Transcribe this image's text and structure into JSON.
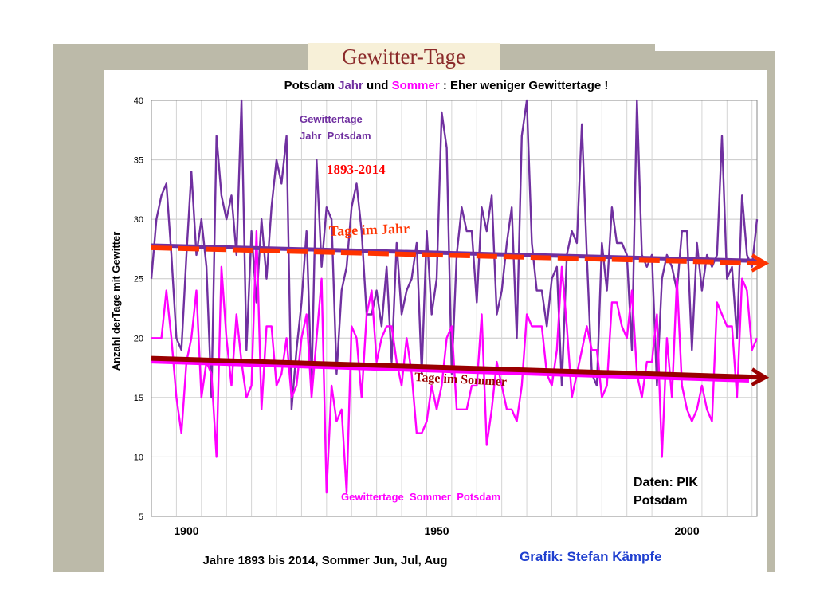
{
  "slide_title": "Gewitter-Tage",
  "chart_data": {
    "type": "line",
    "title_parts": [
      {
        "text": "Potsdam ",
        "color": "#000000"
      },
      {
        "text": "Jahr",
        "color": "#7030a0"
      },
      {
        "text": " und ",
        "color": "#000000"
      },
      {
        "text": "Sommer",
        "color": "#ff00ff"
      },
      {
        "text": " : Eher weniger Gewittertage !",
        "color": "#000000"
      }
    ],
    "ylabel": "Anzahl derTage mit Gewitter",
    "xlabel": "Jahre 1893 bis 2014, Sommer Jun, Jul, Aug",
    "xlim": [
      1893,
      2014
    ],
    "ylim": [
      5,
      40
    ],
    "yticks": [
      5,
      10,
      15,
      20,
      25,
      30,
      35,
      40
    ],
    "xticks": [
      1900,
      1950,
      2000
    ],
    "grid": true,
    "x": [
      1893,
      1894,
      1895,
      1896,
      1897,
      1898,
      1899,
      1900,
      1901,
      1902,
      1903,
      1904,
      1905,
      1906,
      1907,
      1908,
      1909,
      1910,
      1911,
      1912,
      1913,
      1914,
      1915,
      1916,
      1917,
      1918,
      1919,
      1920,
      1921,
      1922,
      1923,
      1924,
      1925,
      1926,
      1927,
      1928,
      1929,
      1930,
      1931,
      1932,
      1933,
      1934,
      1935,
      1936,
      1937,
      1938,
      1939,
      1940,
      1941,
      1942,
      1943,
      1944,
      1945,
      1946,
      1947,
      1948,
      1949,
      1950,
      1951,
      1952,
      1953,
      1954,
      1955,
      1956,
      1957,
      1958,
      1959,
      1960,
      1961,
      1962,
      1963,
      1964,
      1965,
      1966,
      1967,
      1968,
      1969,
      1970,
      1971,
      1972,
      1973,
      1974,
      1975,
      1976,
      1977,
      1978,
      1979,
      1980,
      1981,
      1982,
      1983,
      1984,
      1985,
      1986,
      1987,
      1988,
      1989,
      1990,
      1991,
      1992,
      1993,
      1994,
      1995,
      1996,
      1997,
      1998,
      1999,
      2000,
      2001,
      2002,
      2003,
      2004,
      2005,
      2006,
      2007,
      2008,
      2009,
      2010,
      2011,
      2012,
      2013,
      2014
    ],
    "series": [
      {
        "name": "Gewittertage Jahr Potsdam",
        "color": "#7030a0",
        "values": [
          25,
          30,
          32,
          33,
          27,
          20,
          19,
          27,
          34,
          27,
          30,
          26,
          15,
          37,
          32,
          30,
          32,
          27,
          40,
          19,
          29,
          23,
          30,
          25,
          31,
          35,
          33,
          37,
          14,
          19,
          23,
          29,
          16,
          35,
          26,
          31,
          30,
          17,
          24,
          26,
          31,
          33,
          29,
          22,
          22,
          24,
          21,
          26,
          18,
          28,
          22,
          24,
          25,
          28,
          17,
          29,
          22,
          25,
          39,
          36,
          17,
          27,
          31,
          29,
          29,
          23,
          31,
          29,
          32,
          22,
          24,
          28,
          31,
          20,
          37,
          40,
          28,
          24,
          24,
          21,
          25,
          26,
          16,
          27,
          29,
          28,
          38,
          27,
          17,
          16,
          28,
          24,
          31,
          28,
          28,
          27,
          19,
          40,
          27,
          26,
          27,
          16,
          25,
          27,
          26,
          24,
          29,
          29,
          19,
          28,
          24,
          27,
          26,
          27,
          37,
          25,
          26,
          20,
          32,
          27,
          26,
          30
        ]
      },
      {
        "name": "Gewittertage Sommer Potsdam",
        "color": "#ff00ff",
        "values": [
          20,
          20,
          20,
          24,
          20,
          15,
          12,
          18,
          20,
          24,
          15,
          18,
          17,
          10,
          26,
          20,
          16,
          22,
          18,
          15,
          16,
          29,
          14,
          21,
          21,
          16,
          17,
          20,
          15,
          16,
          20,
          22,
          15,
          20,
          25,
          7,
          16,
          13,
          14,
          7,
          21,
          20,
          15,
          22,
          24,
          18,
          20,
          21,
          21,
          18,
          16,
          20,
          17,
          12,
          12,
          13,
          16,
          14,
          16,
          20,
          21,
          14,
          14,
          14,
          16,
          16,
          22,
          11,
          14,
          18,
          16,
          14,
          14,
          13,
          16,
          22,
          21,
          21,
          21,
          17,
          16,
          19,
          26,
          21,
          15,
          17,
          19,
          21,
          19,
          19,
          15,
          16,
          23,
          23,
          21,
          20,
          24,
          17,
          15,
          18,
          18,
          22,
          10,
          20,
          15,
          25,
          16,
          14,
          13,
          14,
          16,
          14,
          13,
          23,
          22,
          21,
          21,
          15,
          25,
          24,
          19,
          20
        ]
      }
    ],
    "trends": [
      {
        "label": "Tage im Jahr",
        "color": "#ff3300",
        "from": [
          1893,
          27.6
        ],
        "to": [
          2014,
          26.3
        ]
      },
      {
        "label": "Tage im Sommer",
        "color": "#990000",
        "from": [
          1893,
          18.3
        ],
        "to": [
          2014,
          16.7
        ]
      }
    ],
    "annotations": {
      "jahr_line1": "Gewittertage",
      "jahr_line2": "Jahr  Potsdam",
      "period": "1893-2014",
      "sommer": "Gewittertage  Sommer  Potsdam",
      "daten_line1": "Daten: PIK",
      "daten_line2": "Potsdam",
      "grafik": "Grafik: Stefan Kämpfe"
    }
  }
}
